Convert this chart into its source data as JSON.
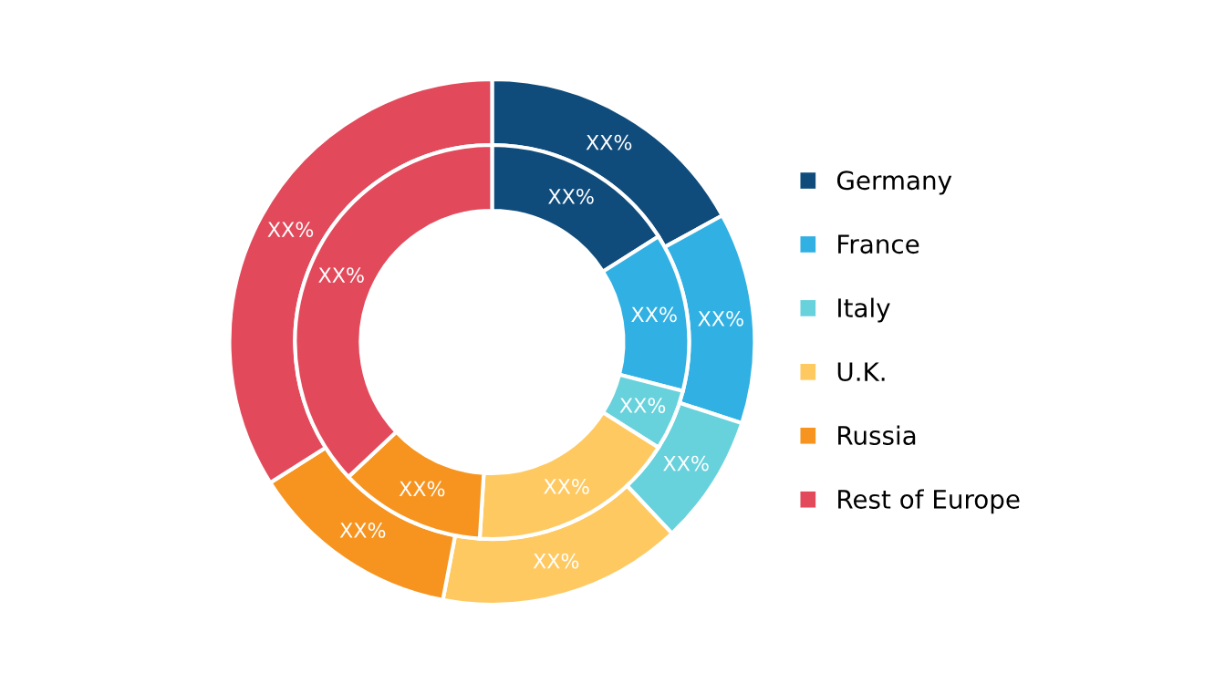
{
  "chart_data": {
    "type": "donut",
    "categories": [
      "Germany",
      "France",
      "Italy",
      "U.K.",
      "Russia",
      "Rest of Europe"
    ],
    "colors": [
      "#0f4c7c",
      "#30b0e3",
      "#67d2dc",
      "#ffc961",
      "#f7941f",
      "#e24a5b"
    ],
    "series": [
      {
        "values": [
          17,
          13,
          8,
          15,
          13,
          34
        ],
        "value_labels": [
          "XX%",
          "XX%",
          "XX%",
          "XX%",
          "XX%",
          "XX%"
        ]
      },
      {
        "values": [
          16,
          13,
          5,
          17,
          12,
          37
        ],
        "value_labels": [
          "XX%",
          "XX%",
          "XX%",
          "XX%",
          "XX%",
          "XX%"
        ]
      }
    ],
    "legend": "right"
  }
}
